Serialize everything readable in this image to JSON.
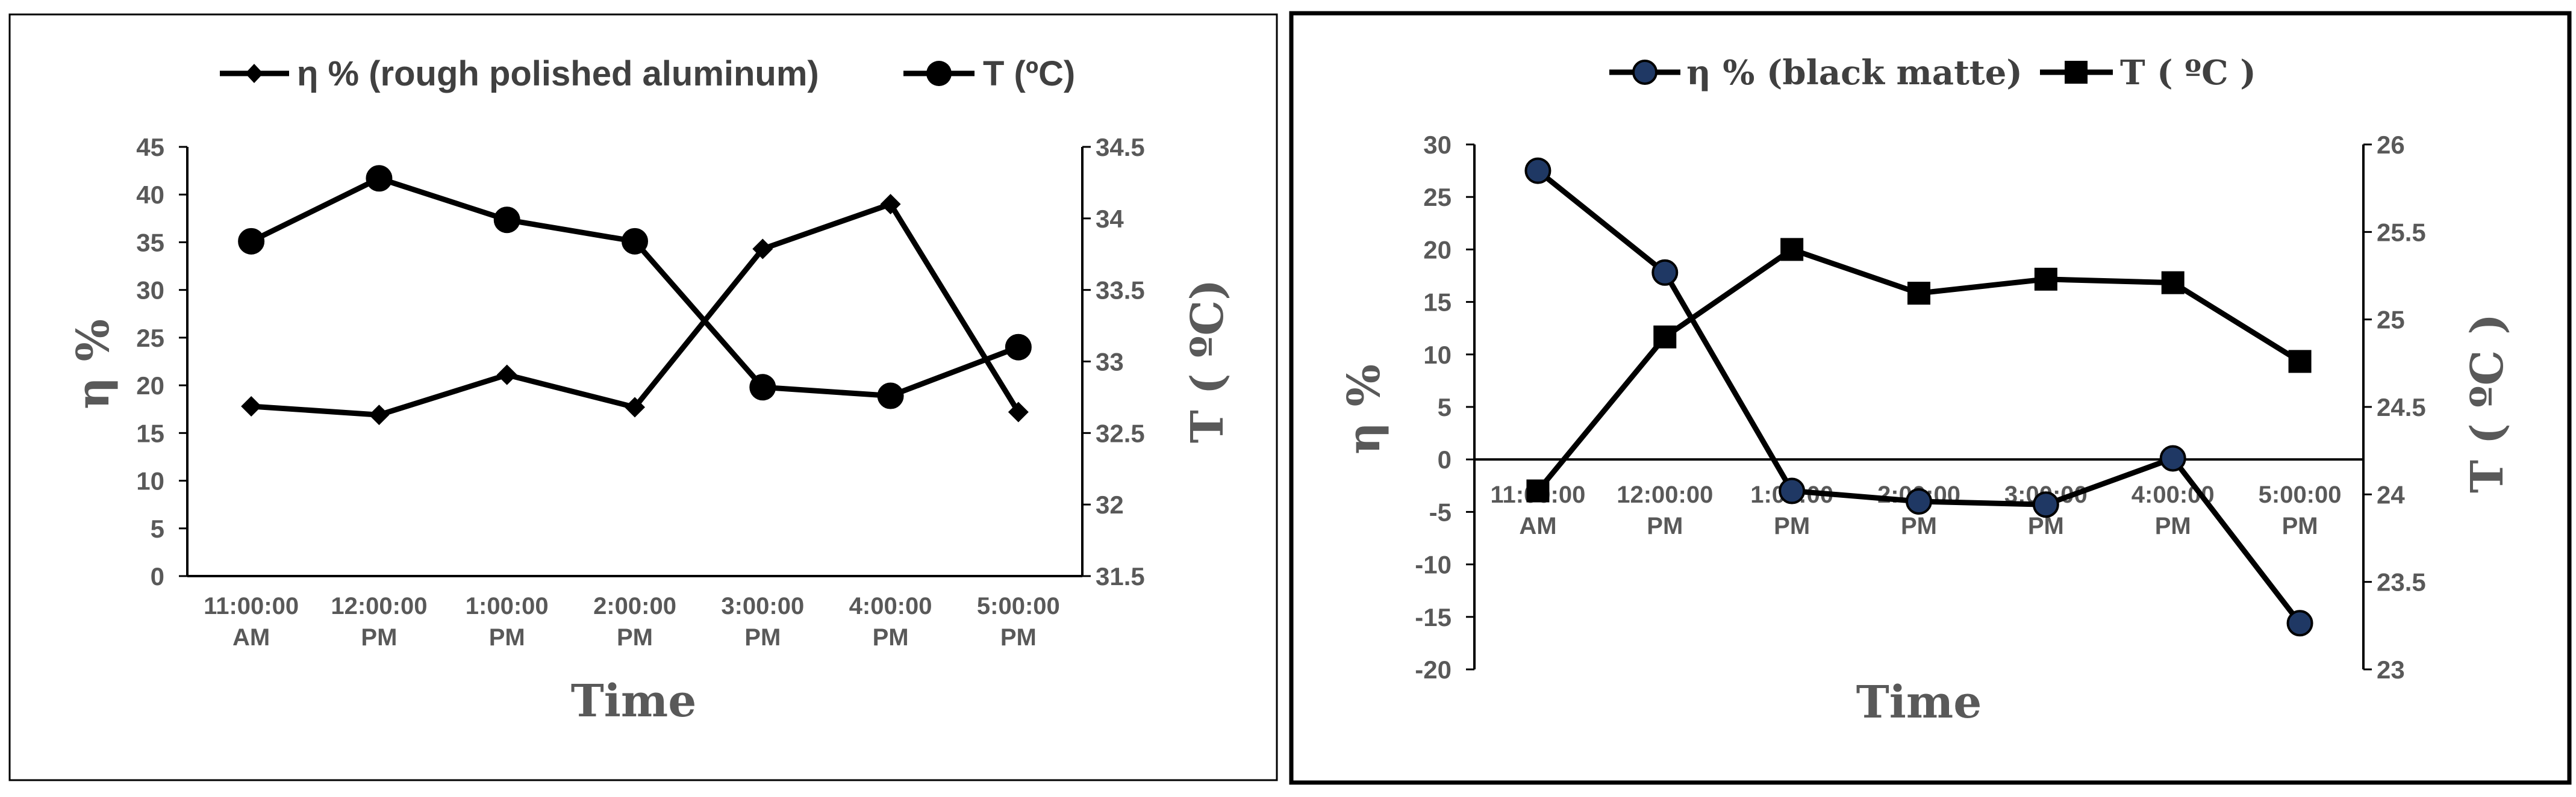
{
  "chart_data": [
    {
      "type": "line",
      "categories": [
        [
          "11:00:00",
          "AM"
        ],
        [
          "12:00:00",
          "PM"
        ],
        [
          "1:00:00",
          "PM"
        ],
        [
          "2:00:00",
          "PM"
        ],
        [
          "3:00:00",
          "PM"
        ],
        [
          "4:00:00",
          "PM"
        ],
        [
          "5:00:00",
          "PM"
        ]
      ],
      "xlabel": "Time",
      "ylabel": "η %",
      "y2label": "T ( ºC)",
      "ylim": [
        0,
        45
      ],
      "yticks": [
        0,
        5,
        10,
        15,
        20,
        25,
        30,
        35,
        40,
        45
      ],
      "y2lim": [
        31.5,
        34.5
      ],
      "y2ticks": [
        "31.5",
        "32",
        "32.5",
        "33",
        "33.5",
        "34",
        "34.5"
      ],
      "legend_position": "top",
      "grid": false,
      "series": [
        {
          "name": "η % (rough polished aluminum)",
          "axis": "left",
          "marker": "diamond",
          "color": "#000000",
          "values": [
            17.8,
            16.9,
            21.1,
            17.7,
            34.3,
            39.0,
            17.2
          ]
        },
        {
          "name": "T (ºC)",
          "axis": "right",
          "marker": "circle",
          "color": "#000000",
          "values": [
            33.84,
            34.28,
            33.99,
            33.84,
            32.82,
            32.76,
            33.1
          ]
        }
      ]
    },
    {
      "type": "line",
      "categories": [
        [
          "11:00:00",
          "AM"
        ],
        [
          "12:00:00",
          "PM"
        ],
        [
          "1:00:00",
          "PM"
        ],
        [
          "2:00:00",
          "PM"
        ],
        [
          "3:00:00",
          "PM"
        ],
        [
          "4:00:00",
          "PM"
        ],
        [
          "5:00:00",
          "PM"
        ]
      ],
      "xlabel": "Time",
      "ylabel": "η %",
      "y2label": "T ( ºC )",
      "ylim": [
        -20,
        30
      ],
      "yticks": [
        -20,
        -15,
        -10,
        -5,
        0,
        5,
        10,
        15,
        20,
        25,
        30
      ],
      "y2lim": [
        23,
        26
      ],
      "y2ticks": [
        "23",
        "23.5",
        "24",
        "24.5",
        "25",
        "25.5",
        "26"
      ],
      "legend_position": "top",
      "grid": false,
      "series": [
        {
          "name": "η % (black matte)",
          "axis": "left",
          "marker": "circle",
          "color": "#000000",
          "marker_fill": "#1f3864",
          "values": [
            27.5,
            17.8,
            -3.0,
            -4.0,
            -4.3,
            0.1,
            -15.6
          ]
        },
        {
          "name": "T ( ºC )",
          "axis": "right",
          "marker": "square",
          "color": "#000000",
          "values": [
            24.02,
            24.9,
            25.4,
            25.15,
            25.23,
            25.21,
            24.76
          ]
        }
      ]
    }
  ]
}
